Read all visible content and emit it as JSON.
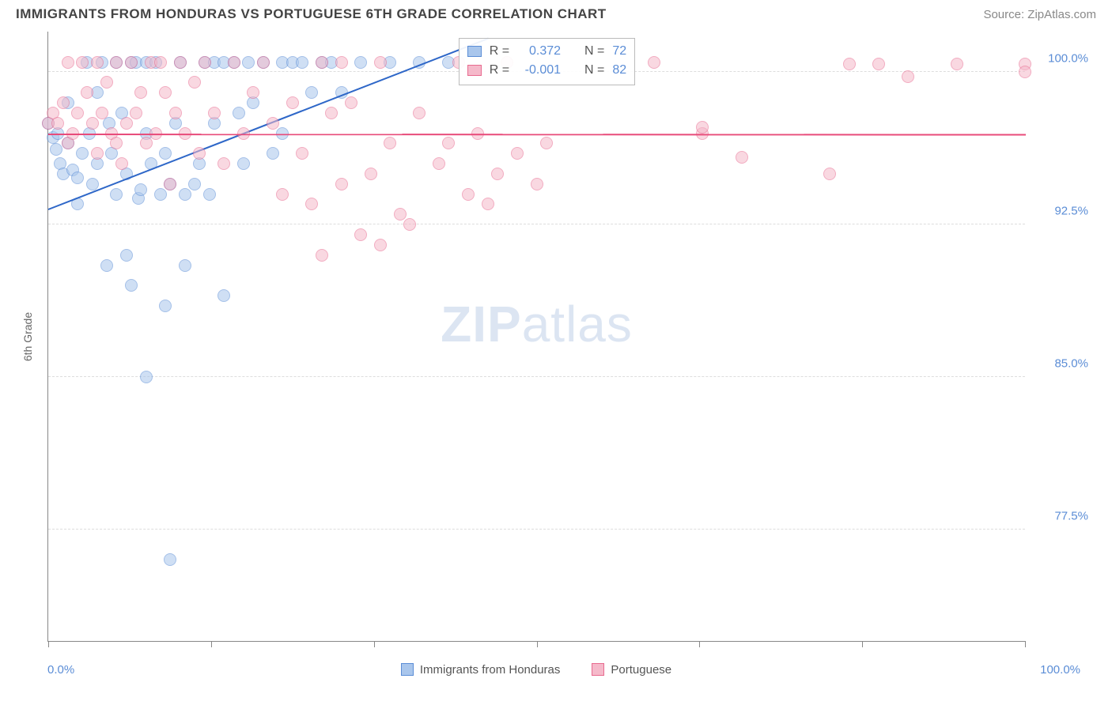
{
  "title": "IMMIGRANTS FROM HONDURAS VS PORTUGUESE 6TH GRADE CORRELATION CHART",
  "source": "Source: ZipAtlas.com",
  "watermark_bold": "ZIP",
  "watermark_light": "atlas",
  "ylabel": "6th Grade",
  "x_min_label": "0.0%",
  "x_max_label": "100.0%",
  "chart": {
    "background_color": "#ffffff",
    "grid_color": "#dddddd",
    "axis_color": "#888888",
    "tick_label_color": "#5b8dd6",
    "xlim": [
      0,
      100
    ],
    "ylim": [
      72,
      102
    ],
    "y_gridlines": [
      77.5,
      85.0,
      92.5,
      100.0
    ],
    "y_tick_labels": [
      "77.5%",
      "85.0%",
      "92.5%",
      "100.0%"
    ],
    "x_ticks": [
      0,
      16.67,
      33.33,
      50,
      66.67,
      83.33,
      100
    ],
    "series": [
      {
        "name": "Immigrants from Honduras",
        "short": "honduras",
        "fill": "#a9c6ec",
        "stroke": "#5b8dd6",
        "R": "0.372",
        "N": "72",
        "reg_line": {
          "x1": 0,
          "y1": 93.3,
          "x2": 45,
          "y2": 101.7,
          "color": "#2e67c8"
        },
        "points": [
          [
            0,
            97.5
          ],
          [
            0.5,
            96.8
          ],
          [
            0.8,
            96.2
          ],
          [
            1,
            97.0
          ],
          [
            1.2,
            95.5
          ],
          [
            1.5,
            95.0
          ],
          [
            2,
            96.5
          ],
          [
            2,
            98.5
          ],
          [
            2.5,
            95.2
          ],
          [
            3,
            94.8
          ],
          [
            3,
            93.5
          ],
          [
            3.5,
            96.0
          ],
          [
            4,
            100.5
          ],
          [
            4.2,
            97.0
          ],
          [
            4.5,
            94.5
          ],
          [
            5,
            95.5
          ],
          [
            5,
            99.0
          ],
          [
            5.5,
            100.5
          ],
          [
            6,
            90.5
          ],
          [
            6.2,
            97.5
          ],
          [
            6.5,
            96.0
          ],
          [
            7,
            94.0
          ],
          [
            7,
            100.5
          ],
          [
            7.5,
            98.0
          ],
          [
            8,
            95.0
          ],
          [
            8,
            91.0
          ],
          [
            8.5,
            100.5
          ],
          [
            8.5,
            89.5
          ],
          [
            9,
            100.5
          ],
          [
            9.2,
            93.8
          ],
          [
            9.5,
            94.2
          ],
          [
            10,
            100.5
          ],
          [
            10,
            97.0
          ],
          [
            10,
            85.0
          ],
          [
            10.5,
            95.5
          ],
          [
            11,
            100.5
          ],
          [
            11.5,
            94.0
          ],
          [
            12,
            96.0
          ],
          [
            12,
            88.5
          ],
          [
            12.5,
            94.5
          ],
          [
            12.5,
            76.0
          ],
          [
            13,
            97.5
          ],
          [
            13.5,
            100.5
          ],
          [
            14,
            94.0
          ],
          [
            14,
            90.5
          ],
          [
            15,
            94.5
          ],
          [
            15.5,
            95.5
          ],
          [
            16,
            100.5
          ],
          [
            16.5,
            94.0
          ],
          [
            17,
            100.5
          ],
          [
            17,
            97.5
          ],
          [
            18,
            100.5
          ],
          [
            18,
            89.0
          ],
          [
            19,
            100.5
          ],
          [
            19.5,
            98.0
          ],
          [
            20,
            95.5
          ],
          [
            20.5,
            100.5
          ],
          [
            21,
            98.5
          ],
          [
            22,
            100.5
          ],
          [
            23,
            96.0
          ],
          [
            24,
            100.5
          ],
          [
            24,
            97.0
          ],
          [
            25,
            100.5
          ],
          [
            26,
            100.5
          ],
          [
            27,
            99.0
          ],
          [
            28,
            100.5
          ],
          [
            29,
            100.5
          ],
          [
            30,
            99.0
          ],
          [
            32,
            100.5
          ],
          [
            35,
            100.5
          ],
          [
            38,
            100.5
          ],
          [
            41,
            100.5
          ]
        ]
      },
      {
        "name": "Portuguese",
        "short": "portuguese",
        "fill": "#f5b9ca",
        "stroke": "#e86a8f",
        "R": "-0.001",
        "N": "82",
        "reg_line": {
          "x1": 0,
          "y1": 97.0,
          "x2": 100,
          "y2": 96.98,
          "color": "#e84b7a"
        },
        "points": [
          [
            0,
            97.5
          ],
          [
            0.5,
            98.0
          ],
          [
            1,
            97.5
          ],
          [
            1.5,
            98.5
          ],
          [
            2,
            100.5
          ],
          [
            2,
            96.5
          ],
          [
            2.5,
            97.0
          ],
          [
            3,
            98.0
          ],
          [
            3.5,
            100.5
          ],
          [
            4,
            99.0
          ],
          [
            4.5,
            97.5
          ],
          [
            5,
            96.0
          ],
          [
            5,
            100.5
          ],
          [
            5.5,
            98.0
          ],
          [
            6,
            99.5
          ],
          [
            6.5,
            97.0
          ],
          [
            7,
            96.5
          ],
          [
            7,
            100.5
          ],
          [
            7.5,
            95.5
          ],
          [
            8,
            97.5
          ],
          [
            8.5,
            100.5
          ],
          [
            9,
            98.0
          ],
          [
            9.5,
            99.0
          ],
          [
            10,
            96.5
          ],
          [
            10.5,
            100.5
          ],
          [
            11,
            97.0
          ],
          [
            11.5,
            100.5
          ],
          [
            12,
            99.0
          ],
          [
            12.5,
            94.5
          ],
          [
            13,
            98.0
          ],
          [
            13.5,
            100.5
          ],
          [
            14,
            97.0
          ],
          [
            15,
            99.5
          ],
          [
            15.5,
            96.0
          ],
          [
            16,
            100.5
          ],
          [
            17,
            98.0
          ],
          [
            18,
            95.5
          ],
          [
            19,
            100.5
          ],
          [
            20,
            97.0
          ],
          [
            21,
            99.0
          ],
          [
            22,
            100.5
          ],
          [
            23,
            97.5
          ],
          [
            24,
            94.0
          ],
          [
            25,
            98.5
          ],
          [
            26,
            96.0
          ],
          [
            27,
            93.5
          ],
          [
            28,
            100.5
          ],
          [
            28,
            91.0
          ],
          [
            29,
            98.0
          ],
          [
            30,
            100.5
          ],
          [
            30,
            94.5
          ],
          [
            31,
            98.5
          ],
          [
            32,
            92.0
          ],
          [
            33,
            95.0
          ],
          [
            34,
            100.5
          ],
          [
            34,
            91.5
          ],
          [
            35,
            96.5
          ],
          [
            36,
            93.0
          ],
          [
            37,
            92.5
          ],
          [
            38,
            98.0
          ],
          [
            40,
            95.5
          ],
          [
            41,
            96.5
          ],
          [
            42,
            100.5
          ],
          [
            43,
            94.0
          ],
          [
            44,
            97.0
          ],
          [
            45,
            93.5
          ],
          [
            46,
            95.0
          ],
          [
            47,
            100.5
          ],
          [
            48,
            96.0
          ],
          [
            50,
            94.5
          ],
          [
            51,
            96.5
          ],
          [
            62,
            100.5
          ],
          [
            67,
            97.0
          ],
          [
            67,
            97.3
          ],
          [
            71,
            95.8
          ],
          [
            80,
            95.0
          ],
          [
            82,
            100.4
          ],
          [
            85,
            100.4
          ],
          [
            88,
            99.8
          ],
          [
            93,
            100.4
          ],
          [
            100,
            100.4
          ],
          [
            100,
            100.0
          ]
        ]
      }
    ],
    "stat_box": {
      "left_pct": 42,
      "top_pct": 1
    },
    "stat_labels": {
      "R": "R =",
      "N": "N ="
    },
    "legend_bottom": [
      {
        "label": "Immigrants from Honduras",
        "fill": "#a9c6ec",
        "stroke": "#5b8dd6"
      },
      {
        "label": "Portuguese",
        "fill": "#f5b9ca",
        "stroke": "#e86a8f"
      }
    ]
  }
}
